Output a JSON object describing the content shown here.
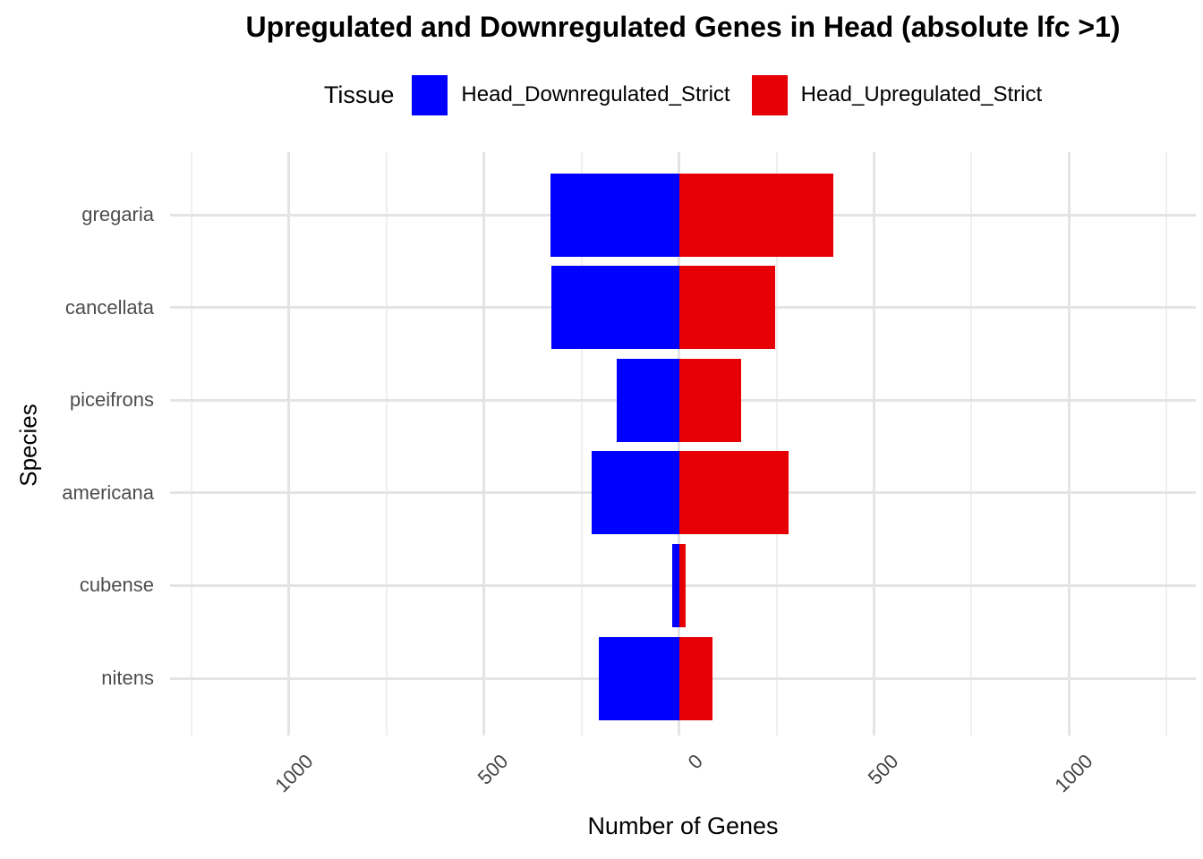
{
  "title": "Upregulated and Downregulated Genes in Head (absolute lfc >1)",
  "legend": {
    "title": "Tissue",
    "items": [
      {
        "label": "Head_Downregulated_Strict",
        "color": "#0000FF"
      },
      {
        "label": "Head_Upregulated_Strict",
        "color": "#E60005"
      }
    ]
  },
  "chart_data": {
    "type": "bar",
    "orientation": "horizontal-diverging",
    "title": "Upregulated and Downregulated Genes in Head (absolute lfc >1)",
    "xlabel": "Number of Genes",
    "ylabel": "Species",
    "categories": [
      "gregaria",
      "cancellata",
      "piceifrons",
      "americana",
      "cubense",
      "nitens"
    ],
    "series": [
      {
        "name": "Head_Downregulated_Strict",
        "direction": "negative",
        "color": "#0000FF",
        "values": [
          330,
          327,
          160,
          225,
          18,
          205
        ]
      },
      {
        "name": "Head_Upregulated_Strict",
        "direction": "positive",
        "color": "#E60005",
        "values": [
          395,
          247,
          160,
          281,
          16,
          85
        ]
      }
    ],
    "xlim": [
      -1305,
      1325
    ],
    "x_major_ticks": [
      -1000,
      -500,
      0,
      500,
      1000
    ],
    "x_tick_labels": [
      "1000",
      "500",
      "0",
      "500",
      "1000"
    ],
    "x_minor_ticks": [
      -1250,
      -750,
      -250,
      250,
      750,
      1250
    ],
    "grid": true,
    "legend_position": "top",
    "background": "#ffffff",
    "grid_color": "#e4e4e4",
    "tick_label_color": "#4d4d4d"
  }
}
